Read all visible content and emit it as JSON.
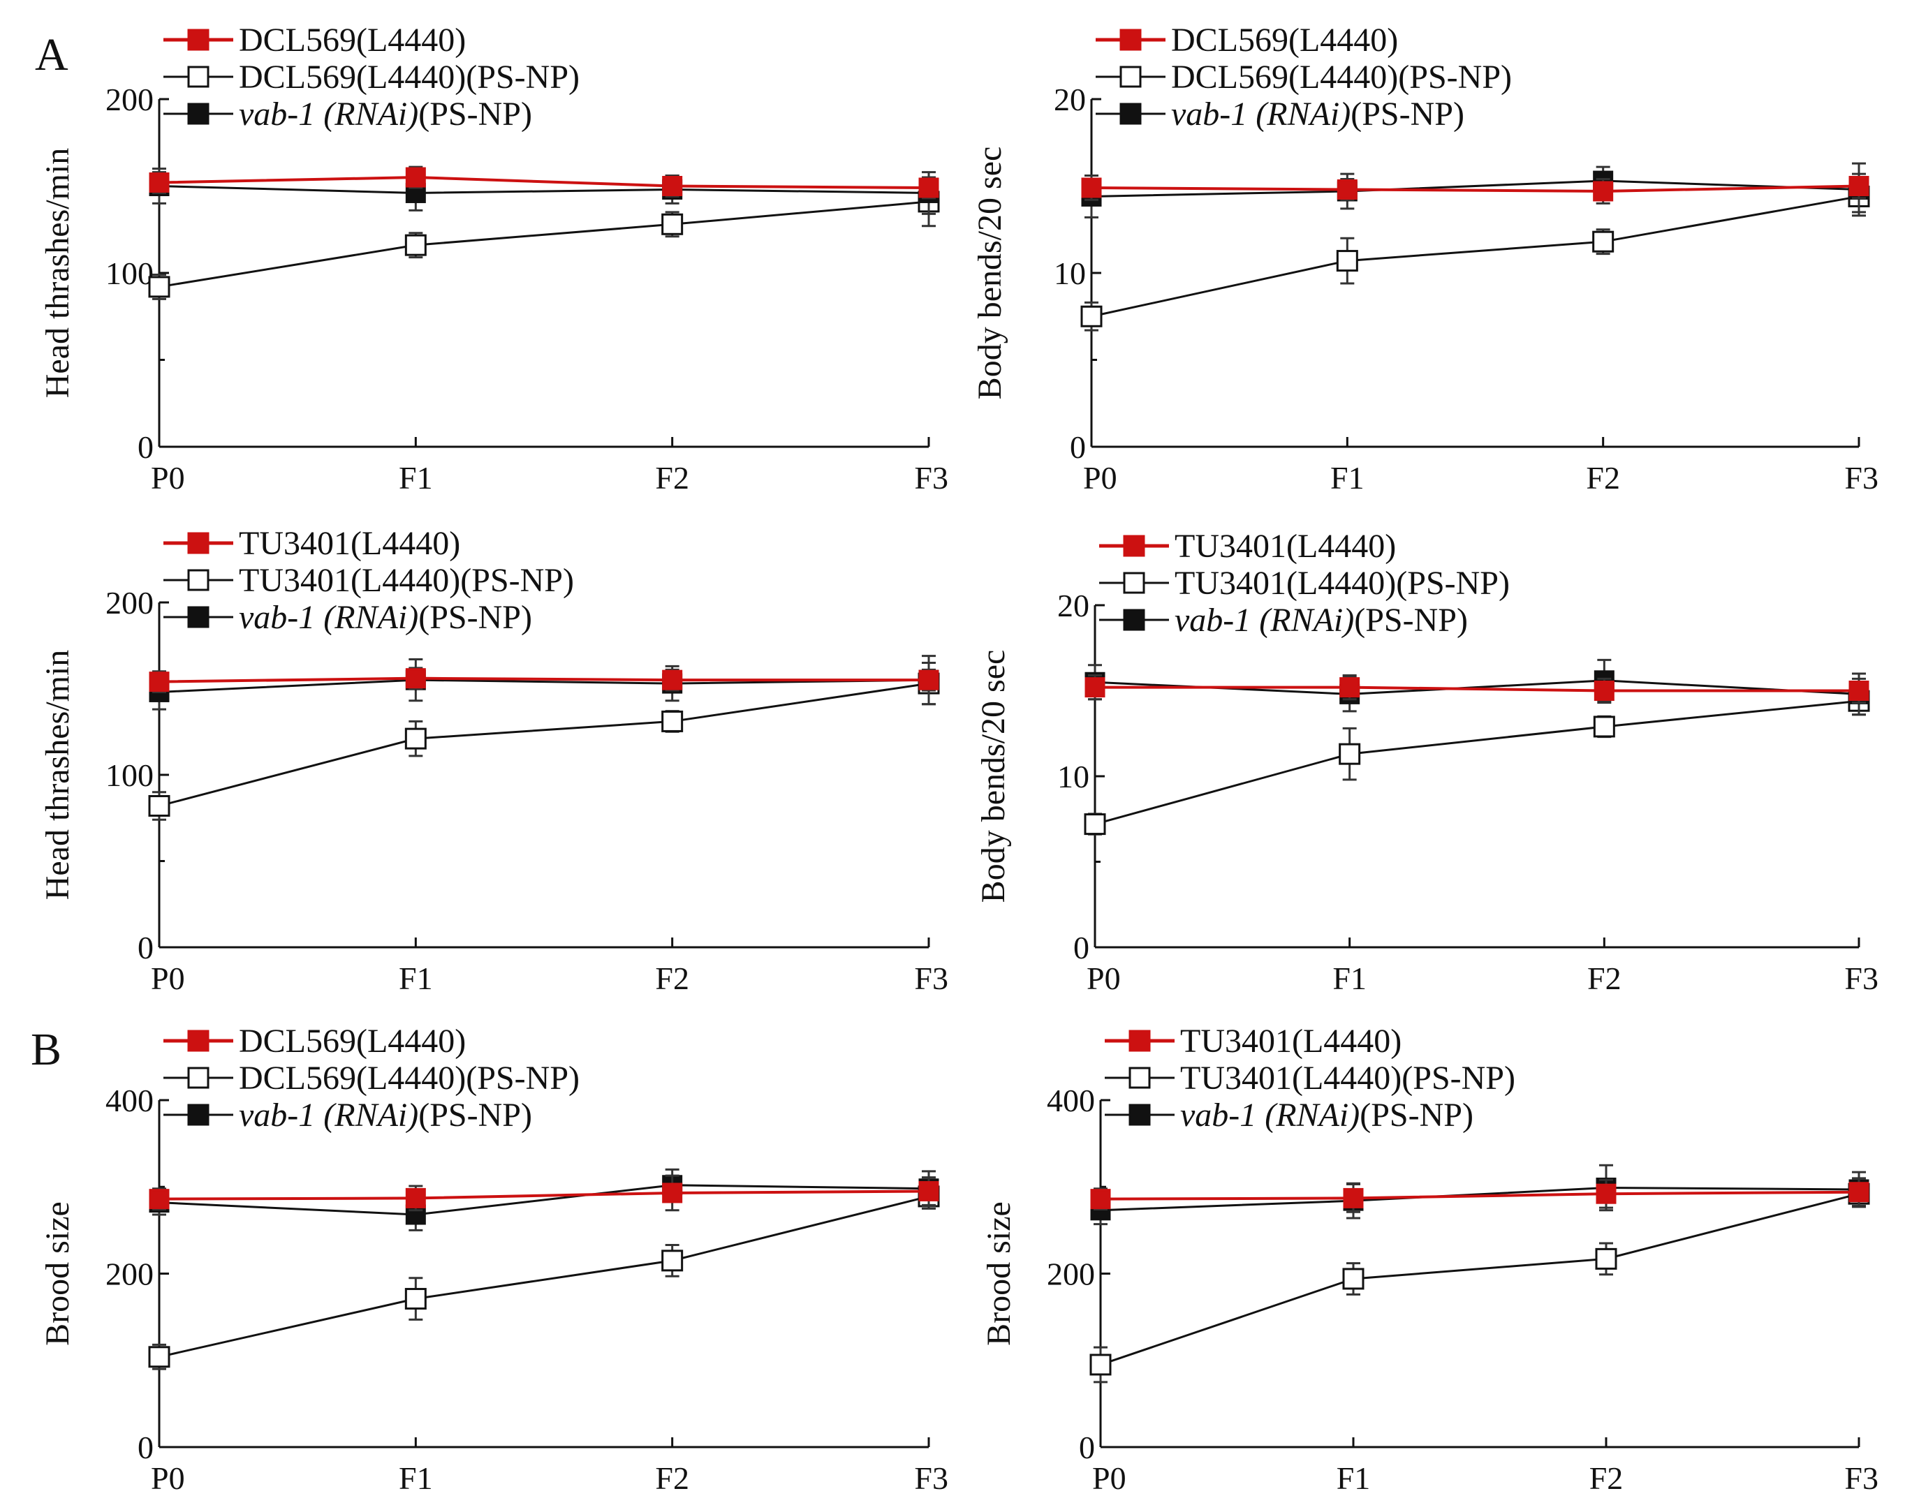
{
  "figure": {
    "panel_letters": [
      "A",
      "B"
    ]
  },
  "colors": {
    "control": "#cc1111",
    "treated": "#ffffff",
    "rnai": "#111111",
    "axis": "#111111"
  },
  "chart_data": [
    {
      "type": "line",
      "id": "a-top-left",
      "panel_letter": "A",
      "ylabel": "Head thrashes/min",
      "categories": [
        "P0",
        "F1",
        "F2",
        "F3"
      ],
      "yticks": [
        "0",
        "100",
        "200"
      ],
      "ylim": [
        0,
        200
      ],
      "series": [
        {
          "name": "DCL569(L4440)",
          "prefix": "DCL569(L4440)",
          "italic": "",
          "suffix": "",
          "style": "control",
          "values": [
            152,
            155,
            150,
            149
          ],
          "errors": [
            6,
            6,
            6,
            6
          ]
        },
        {
          "name": "DCL569(L4440)(PS-NP)",
          "prefix": "DCL569(L4440)(PS-NP)",
          "italic": "",
          "suffix": "",
          "style": "treated",
          "values": [
            92,
            116,
            128,
            141
          ],
          "errors": [
            7,
            7,
            7,
            14
          ]
        },
        {
          "name": "vab-1 (RNAi)(PS-NP)",
          "prefix": "",
          "italic": "vab-1 (RNAi)",
          "suffix": "(PS-NP)",
          "style": "rnai",
          "values": [
            150,
            146,
            148,
            146
          ],
          "errors": [
            10,
            10,
            8,
            12
          ]
        }
      ]
    },
    {
      "type": "line",
      "id": "a-top-right",
      "panel_letter": "",
      "ylabel": "Body bends/20 sec",
      "categories": [
        "P0",
        "F1",
        "F2",
        "F3"
      ],
      "yticks": [
        "0",
        "10",
        "20"
      ],
      "ylim": [
        0,
        20
      ],
      "series": [
        {
          "name": "DCL569(L4440)",
          "prefix": "DCL569(L4440)",
          "italic": "",
          "suffix": "",
          "style": "control",
          "values": [
            14.9,
            14.8,
            14.7,
            15.0
          ],
          "errors": [
            0.7,
            0.6,
            0.7,
            0.7
          ]
        },
        {
          "name": "DCL569(L4440)(PS-NP)",
          "prefix": "DCL569(L4440)(PS-NP)",
          "italic": "",
          "suffix": "",
          "style": "treated",
          "values": [
            7.5,
            10.7,
            11.8,
            14.4
          ],
          "errors": [
            0.8,
            1.3,
            0.7,
            0.9
          ]
        },
        {
          "name": "vab-1 (RNAi)(PS-NP)",
          "prefix": "",
          "italic": "vab-1 (RNAi)",
          "suffix": "(PS-NP)",
          "style": "rnai",
          "values": [
            14.4,
            14.7,
            15.3,
            14.8
          ],
          "errors": [
            1.2,
            1.0,
            0.8,
            1.5
          ]
        }
      ]
    },
    {
      "type": "line",
      "id": "a-middle-left",
      "panel_letter": "",
      "ylabel": "Head thrashes/min",
      "categories": [
        "P0",
        "F1",
        "F2",
        "F3"
      ],
      "yticks": [
        "0",
        "100",
        "200"
      ],
      "ylim": [
        0,
        200
      ],
      "series": [
        {
          "name": "TU3401(L4440)",
          "prefix": "TU3401(L4440)",
          "italic": "",
          "suffix": "",
          "style": "control",
          "values": [
            154,
            156,
            155,
            155
          ],
          "errors": [
            6,
            6,
            6,
            6
          ]
        },
        {
          "name": "TU3401(L4440)(PS-NP)",
          "prefix": "TU3401(L4440)(PS-NP)",
          "italic": "",
          "suffix": "",
          "style": "treated",
          "values": [
            82,
            121,
            131,
            153
          ],
          "errors": [
            8,
            10,
            6,
            12
          ]
        },
        {
          "name": "vab-1 (RNAi)(PS-NP)",
          "prefix": "",
          "italic": "vab-1 (RNAi)",
          "suffix": "(PS-NP)",
          "style": "rnai",
          "values": [
            148,
            155,
            153,
            155
          ],
          "errors": [
            10,
            12,
            10,
            14
          ]
        }
      ]
    },
    {
      "type": "line",
      "id": "a-middle-right",
      "panel_letter": "",
      "ylabel": "Body bends/20 sec",
      "categories": [
        "P0",
        "F1",
        "F2",
        "F3"
      ],
      "yticks": [
        "0",
        "10",
        "20"
      ],
      "ylim": [
        0,
        20
      ],
      "series": [
        {
          "name": "TU3401(L4440)",
          "prefix": "TU3401(L4440)",
          "italic": "",
          "suffix": "",
          "style": "control",
          "values": [
            15.2,
            15.2,
            15.0,
            15.0
          ],
          "errors": [
            0.7,
            0.7,
            0.7,
            0.7
          ]
        },
        {
          "name": "TU3401(L4440)(PS-NP)",
          "prefix": "TU3401(L4440)(PS-NP)",
          "italic": "",
          "suffix": "",
          "style": "treated",
          "values": [
            7.2,
            11.3,
            12.9,
            14.4
          ],
          "errors": [
            0.6,
            1.5,
            0.6,
            0.8
          ]
        },
        {
          "name": "vab-1 (RNAi)(PS-NP)",
          "prefix": "",
          "italic": "vab-1 (RNAi)",
          "suffix": "(PS-NP)",
          "style": "rnai",
          "values": [
            15.5,
            14.8,
            15.6,
            14.8
          ],
          "errors": [
            1.0,
            1.0,
            1.2,
            1.2
          ]
        }
      ]
    },
    {
      "type": "line",
      "id": "b-left",
      "panel_letter": "B",
      "ylabel": "Brood size",
      "categories": [
        "P0",
        "F1",
        "F2",
        "F3"
      ],
      "yticks": [
        "0",
        "200",
        "400"
      ],
      "ylim": [
        0,
        400
      ],
      "series": [
        {
          "name": "DCL569(L4440)",
          "prefix": "DCL569(L4440)",
          "italic": "",
          "suffix": "",
          "style": "control",
          "values": [
            286,
            287,
            293,
            295
          ],
          "errors": [
            12,
            14,
            20,
            16
          ]
        },
        {
          "name": "DCL569(L4440)(PS-NP)",
          "prefix": "DCL569(L4440)(PS-NP)",
          "italic": "",
          "suffix": "",
          "style": "treated",
          "values": [
            104,
            171,
            215,
            289
          ],
          "errors": [
            14,
            24,
            18,
            14
          ]
        },
        {
          "name": "vab-1 (RNAi)(PS-NP)",
          "prefix": "",
          "italic": "vab-1 (RNAi)",
          "suffix": "(PS-NP)",
          "style": "rnai",
          "values": [
            282,
            268,
            302,
            298
          ],
          "errors": [
            14,
            18,
            18,
            20
          ]
        }
      ]
    },
    {
      "type": "line",
      "id": "b-right",
      "panel_letter": "",
      "ylabel": "Brood size",
      "categories": [
        "P0",
        "F1",
        "F2",
        "F3"
      ],
      "yticks": [
        "0",
        "200",
        "400"
      ],
      "ylim": [
        0,
        400
      ],
      "series": [
        {
          "name": "TU3401(L4440)",
          "prefix": "TU3401(L4440)",
          "italic": "",
          "suffix": "",
          "style": "control",
          "values": [
            286,
            287,
            292,
            294
          ],
          "errors": [
            12,
            16,
            16,
            16
          ]
        },
        {
          "name": "TU3401(L4440)(PS-NP)",
          "prefix": "TU3401(L4440)(PS-NP)",
          "italic": "",
          "suffix": "",
          "style": "treated",
          "values": [
            95,
            194,
            217,
            292
          ],
          "errors": [
            20,
            18,
            18,
            14
          ]
        },
        {
          "name": "vab-1 (RNAi)(PS-NP)",
          "prefix": "",
          "italic": "vab-1 (RNAi)",
          "suffix": "(PS-NP)",
          "style": "rnai",
          "values": [
            273,
            284,
            299,
            297
          ],
          "errors": [
            16,
            20,
            26,
            20
          ]
        }
      ]
    }
  ]
}
